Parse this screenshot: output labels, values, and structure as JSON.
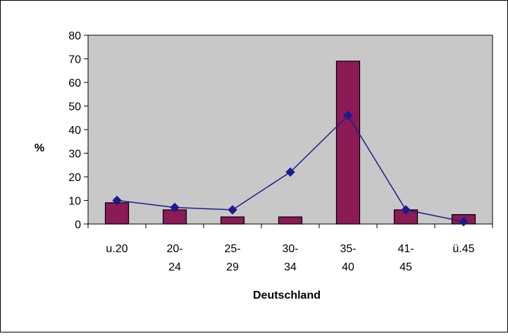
{
  "chart_data": {
    "type": "bar",
    "categories": [
      [
        "u.20"
      ],
      [
        "20-",
        "24"
      ],
      [
        "25-",
        "29"
      ],
      [
        "30-",
        "34"
      ],
      [
        "35-",
        "40"
      ],
      [
        "41-",
        "45"
      ],
      [
        "ü.45"
      ]
    ],
    "series": [
      {
        "type": "bar",
        "values": [
          9,
          6,
          3,
          3,
          69,
          6,
          4
        ]
      },
      {
        "type": "line",
        "values": [
          10,
          7,
          6,
          22,
          46,
          6,
          1
        ]
      }
    ],
    "ylabel": "%",
    "xlabel": "Deutschland",
    "ylim": [
      0,
      80
    ],
    "yticks": [
      0,
      10,
      20,
      30,
      40,
      50,
      60,
      70,
      80
    ],
    "grid": false,
    "legend": "none",
    "colors": {
      "bar_fill": "#8B1A55",
      "bar_stroke": "#000000",
      "line": "#1B1B8F",
      "marker": "#1B1B8F",
      "plot_bg": "#C8C8C8",
      "frame": "#000000"
    }
  }
}
